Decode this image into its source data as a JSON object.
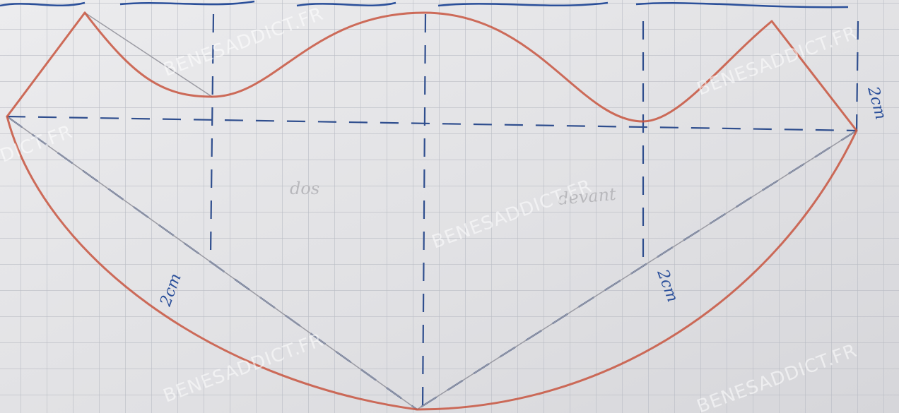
{
  "labels": {
    "left_measure": "2cm",
    "right_measure": "2cm",
    "side_measure": "2cm",
    "back": "dos",
    "front": "devant"
  },
  "watermark": "BENESADDICT.FR"
}
